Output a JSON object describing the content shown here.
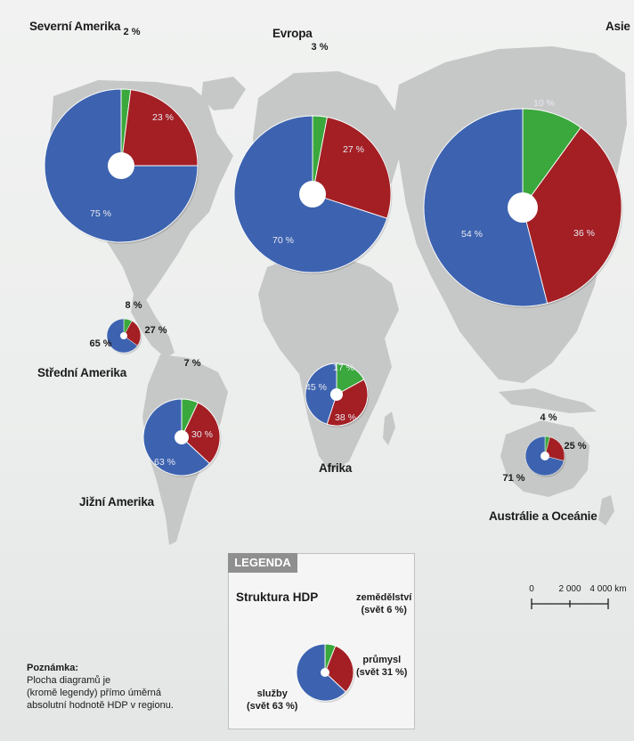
{
  "regions": [
    {
      "name": "Severní Amerika",
      "segments": [
        {
          "key": "zemedelstvi",
          "label": "2 %",
          "value": 2
        },
        {
          "key": "prumysl",
          "label": "23 %",
          "value": 23
        },
        {
          "key": "sluzby",
          "label": "75 %",
          "value": 75
        }
      ]
    },
    {
      "name": "Evropa",
      "segments": [
        {
          "key": "zemedelstvi",
          "label": "3 %",
          "value": 3
        },
        {
          "key": "prumysl",
          "label": "27 %",
          "value": 27
        },
        {
          "key": "sluzby",
          "label": "70 %",
          "value": 70
        }
      ]
    },
    {
      "name": "Asie",
      "segments": [
        {
          "key": "zemedelstvi",
          "label": "10 %",
          "value": 10
        },
        {
          "key": "prumysl",
          "label": "36 %",
          "value": 36
        },
        {
          "key": "sluzby",
          "label": "54 %",
          "value": 54
        }
      ]
    },
    {
      "name": "Střední Amerika",
      "segments": [
        {
          "key": "zemedelstvi",
          "label": "8 %",
          "value": 8
        },
        {
          "key": "prumysl",
          "label": "27 %",
          "value": 27
        },
        {
          "key": "sluzby",
          "label": "65 %",
          "value": 65
        }
      ]
    },
    {
      "name": "Jižní Amerika",
      "segments": [
        {
          "key": "zemedelstvi",
          "label": "7 %",
          "value": 7
        },
        {
          "key": "prumysl",
          "label": "30 %",
          "value": 30
        },
        {
          "key": "sluzby",
          "label": "63 %",
          "value": 63
        }
      ]
    },
    {
      "name": "Afrika",
      "segments": [
        {
          "key": "zemedelstvi",
          "label": "17 %",
          "value": 17
        },
        {
          "key": "prumysl",
          "label": "38 %",
          "value": 38
        },
        {
          "key": "sluzby",
          "label": "45 %",
          "value": 45
        }
      ]
    },
    {
      "name": "Austrálie a Oceánie",
      "segments": [
        {
          "key": "zemedelstvi",
          "label": "4 %",
          "value": 4
        },
        {
          "key": "prumysl",
          "label": "25 %",
          "value": 25
        },
        {
          "key": "sluzby",
          "label": "71 %",
          "value": 71
        }
      ]
    }
  ],
  "colors": {
    "zemedelstvi": "#3aa83c",
    "prumysl": "#a31f24",
    "sluzby": "#3d63b0",
    "land": "#c6c8c7",
    "background": "#eceeed"
  },
  "legend": {
    "tab": "LEGENDA",
    "title": "Struktura HDP",
    "segments": [
      {
        "key": "zemedelstvi",
        "value": 6
      },
      {
        "key": "prumysl",
        "value": 31
      },
      {
        "key": "sluzby",
        "value": 63
      }
    ],
    "labels": {
      "zemedelstvi": {
        "line1": "zemědělství",
        "line2": "(svět 6 %)"
      },
      "prumysl": {
        "line1": "průmysl",
        "line2": "(svět 31 %)"
      },
      "sluzby": {
        "line1": "služby",
        "line2": "(svět 63 %)"
      }
    }
  },
  "note": {
    "title": "Poznámka:",
    "lines": [
      "Plocha diagramů je",
      "(kromě legendy) přímo úměrná",
      "absolutní hodnotě HDP v regionu."
    ]
  },
  "scale": {
    "ticks": [
      "0",
      "2 000",
      "4 000 km"
    ]
  }
}
